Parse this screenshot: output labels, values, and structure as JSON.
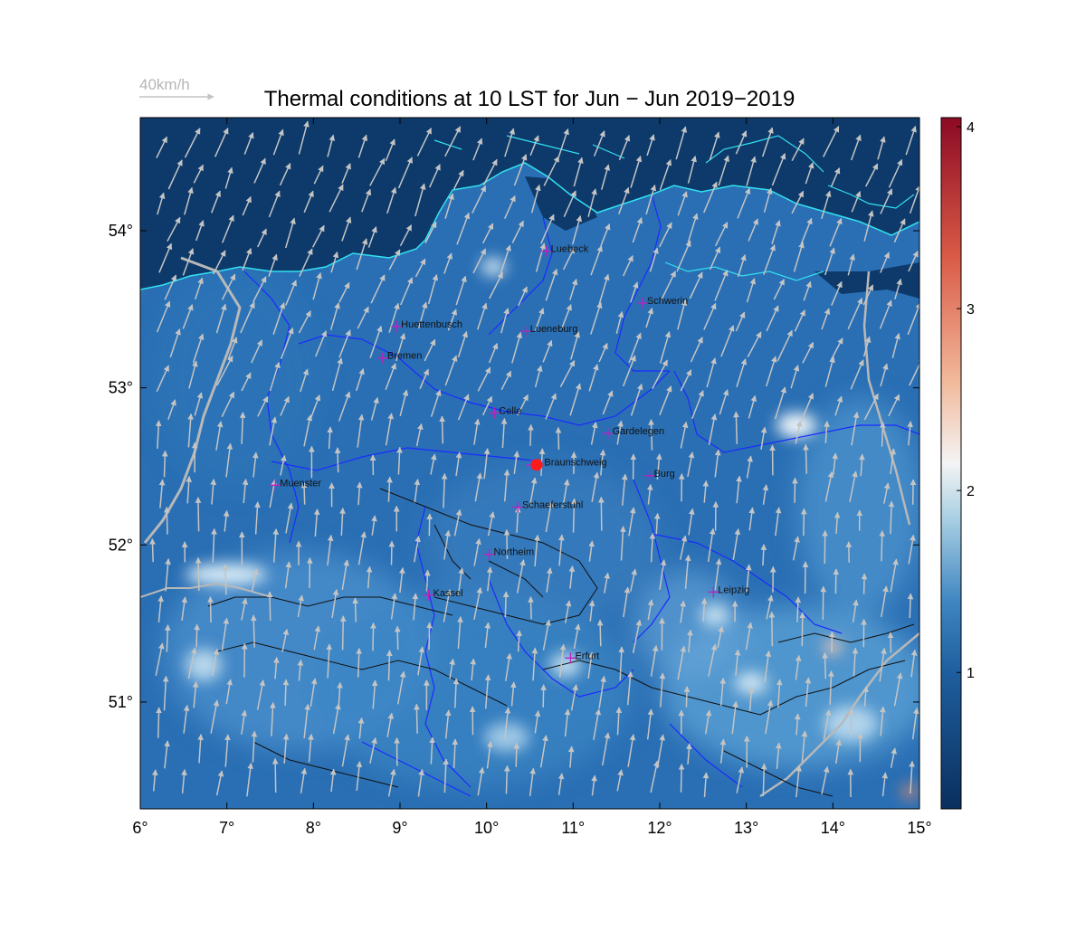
{
  "title": "Thermal conditions at 10 LST for Jun − Jun  2019−2019",
  "wind_legend": {
    "label": "40km/h",
    "color": "#c0c0c0"
  },
  "map": {
    "lon_range": [
      6,
      15
    ],
    "lat_range": [
      50.32,
      54.72
    ],
    "x_ticks": [
      {
        "value": 6,
        "label": "6°"
      },
      {
        "value": 7,
        "label": "7°"
      },
      {
        "value": 8,
        "label": "8°"
      },
      {
        "value": 9,
        "label": "9°"
      },
      {
        "value": 10,
        "label": "10°"
      },
      {
        "value": 11,
        "label": "11°"
      },
      {
        "value": 12,
        "label": "12°"
      },
      {
        "value": 13,
        "label": "13°"
      },
      {
        "value": 14,
        "label": "14°"
      },
      {
        "value": 15,
        "label": "15°"
      }
    ],
    "y_ticks": [
      {
        "value": 51,
        "label": "51°"
      },
      {
        "value": 52,
        "label": "52°"
      },
      {
        "value": 53,
        "label": "53°"
      },
      {
        "value": 54,
        "label": "54°"
      }
    ],
    "colors": {
      "sea": "#0d3a6b",
      "land": "#2a6fb4",
      "coast": "#33e0f0",
      "borders": "#1a2cff",
      "rivers": "#b8b8b8",
      "terrain": "#111111",
      "city_marker": "#c020c0",
      "site": "#ff1a1a"
    },
    "cities": [
      {
        "name": "Luebeck",
        "lon": 10.69,
        "lat": 53.87
      },
      {
        "name": "Schwerin",
        "lon": 11.8,
        "lat": 53.54
      },
      {
        "name": "Huettenbusch",
        "lon": 8.96,
        "lat": 53.39
      },
      {
        "name": "Lueneburg",
        "lon": 10.45,
        "lat": 53.36
      },
      {
        "name": "Bremen",
        "lon": 8.8,
        "lat": 53.19
      },
      {
        "name": "Celle",
        "lon": 10.09,
        "lat": 52.84
      },
      {
        "name": "Gardelegen",
        "lon": 11.4,
        "lat": 52.71
      },
      {
        "name": "Braunschweig",
        "lon": 10.52,
        "lat": 52.51
      },
      {
        "name": "Burg",
        "lon": 11.88,
        "lat": 52.44
      },
      {
        "name": "Muenster",
        "lon": 7.56,
        "lat": 52.38
      },
      {
        "name": "Schaeferstuhl",
        "lon": 10.36,
        "lat": 52.24
      },
      {
        "name": "Northeim",
        "lon": 10.03,
        "lat": 51.94
      },
      {
        "name": "Kassel",
        "lon": 9.33,
        "lat": 51.68
      },
      {
        "name": "Leipzig",
        "lon": 12.62,
        "lat": 51.7
      },
      {
        "name": "Erfurt",
        "lon": 10.97,
        "lat": 51.28
      }
    ],
    "site": {
      "lon": 10.58,
      "lat": 52.51
    }
  },
  "colorbar": {
    "range": [
      0.25,
      4.05
    ],
    "ticks": [
      {
        "value": 1,
        "label": "1"
      },
      {
        "value": 2,
        "label": "2"
      },
      {
        "value": 3,
        "label": "3"
      },
      {
        "value": 4,
        "label": "4"
      }
    ],
    "stops": [
      "#0a2f5e",
      "#1f5f9f",
      "#3f86c1",
      "#a9cfe3",
      "#f4f4f4",
      "#f2b89a",
      "#d95a46",
      "#8c0a24"
    ]
  }
}
